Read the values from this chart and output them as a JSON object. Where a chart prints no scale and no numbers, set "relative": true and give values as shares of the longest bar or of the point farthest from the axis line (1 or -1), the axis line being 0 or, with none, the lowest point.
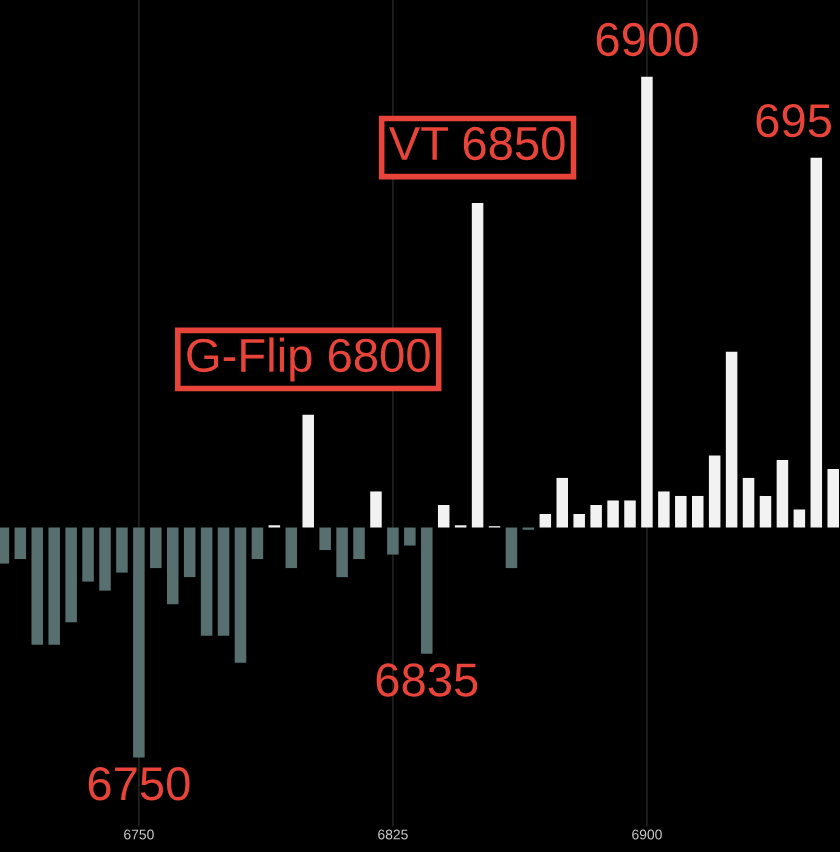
{
  "chart_data": {
    "type": "bar",
    "relative": true,
    "x": [
      6710,
      6715,
      6720,
      6725,
      6730,
      6735,
      6740,
      6745,
      6750,
      6755,
      6760,
      6765,
      6770,
      6775,
      6780,
      6785,
      6790,
      6795,
      6800,
      6805,
      6810,
      6815,
      6820,
      6825,
      6830,
      6835,
      6840,
      6845,
      6850,
      6855,
      6860,
      6865,
      6870,
      6875,
      6880,
      6885,
      6890,
      6895,
      6900,
      6905,
      6910,
      6915,
      6920,
      6925,
      6930,
      6935,
      6940,
      6945,
      6950,
      6955
    ],
    "values": [
      -0.08,
      -0.07,
      -0.26,
      -0.26,
      -0.21,
      -0.12,
      -0.14,
      -0.1,
      -0.51,
      -0.09,
      -0.17,
      -0.11,
      -0.24,
      -0.24,
      -0.3,
      -0.07,
      0.005,
      -0.09,
      0.25,
      -0.05,
      -0.11,
      -0.07,
      0.08,
      -0.06,
      -0.04,
      -0.28,
      0.05,
      0.005,
      0.72,
      0.003,
      -0.09,
      -0.005,
      0.03,
      0.11,
      0.03,
      0.05,
      0.06,
      0.06,
      1,
      0.08,
      0.07,
      0.07,
      0.16,
      0.39,
      0.11,
      0.07,
      0.15,
      0.04,
      0.82,
      0.13
    ],
    "colors": [
      "#57706f",
      "#57706f",
      "#57706f",
      "#57706f",
      "#57706f",
      "#57706f",
      "#57706f",
      "#57706f",
      "#57706f",
      "#57706f",
      "#57706f",
      "#57706f",
      "#57706f",
      "#57706f",
      "#57706f",
      "#57706f",
      "#f2f2f2",
      "#57706f",
      "#f2f2f2",
      "#57706f",
      "#57706f",
      "#57706f",
      "#f2f2f2",
      "#57706f",
      "#57706f",
      "#57706f",
      "#f2f2f2",
      "#f2f2f2",
      "#f2f2f2",
      "#f2f2f2",
      "#57706f",
      "#57706f",
      "#f2f2f2",
      "#f2f2f2",
      "#f2f2f2",
      "#f2f2f2",
      "#f2f2f2",
      "#f2f2f2",
      "#f2f2f2",
      "#f2f2f2",
      "#f2f2f2",
      "#f2f2f2",
      "#f2f2f2",
      "#f2f2f2",
      "#f2f2f2",
      "#f2f2f2",
      "#f2f2f2",
      "#f2f2f2",
      "#f2f2f2",
      "#f2f2f2"
    ],
    "xlim": [
      6709,
      6957
    ],
    "xticks": [
      6750,
      6825,
      6900
    ],
    "grid": "x",
    "annotations": [
      {
        "text": "G-Flip 6800",
        "x": 6800,
        "y": 0.25
      },
      {
        "text": "VT 6850",
        "x": 6850,
        "y": 0.72
      },
      {
        "text": "6900",
        "x": 6900,
        "y": 1
      },
      {
        "text": "695",
        "x": 6950,
        "y": 0.82
      },
      {
        "text": "6835",
        "x": 6835,
        "y": -0.28
      },
      {
        "text": "6750",
        "x": 6750,
        "y": -0.51
      }
    ]
  }
}
